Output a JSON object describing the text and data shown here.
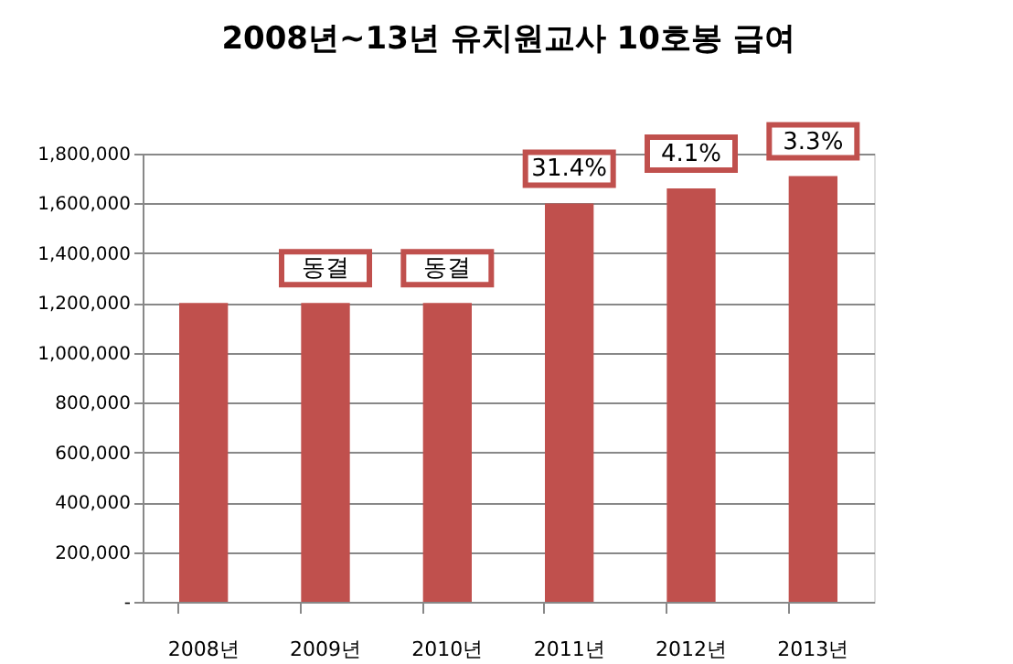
{
  "chart_data": {
    "type": "bar",
    "title": "2008년~13년 유치원교사 10호봉 급여",
    "categories": [
      "2008년",
      "2009년",
      "2010년",
      "2011년",
      "2012년",
      "2013년"
    ],
    "values": [
      1200000,
      1200000,
      1200000,
      1600000,
      1660000,
      1710000
    ],
    "color": "#c0504d",
    "ylim": [
      0,
      1800000
    ],
    "yticks": [
      {
        "value": 0,
        "label": "-"
      },
      {
        "value": 200000,
        "label": "200,000"
      },
      {
        "value": 400000,
        "label": "400,000"
      },
      {
        "value": 600000,
        "label": "600,000"
      },
      {
        "value": 800000,
        "label": "800,000"
      },
      {
        "value": 1000000,
        "label": "1,000,000"
      },
      {
        "value": 1200000,
        "label": "1,200,000"
      },
      {
        "value": 1400000,
        "label": "1,400,000"
      },
      {
        "value": 1600000,
        "label": "1,600,000"
      },
      {
        "value": 1800000,
        "label": "1,800,000"
      }
    ],
    "grid": "y",
    "annotations": [
      {
        "text": "동결",
        "x": "2009년",
        "y": 1200000
      },
      {
        "text": "동결",
        "x": "2010년",
        "y": 1200000
      },
      {
        "text": "31.4%",
        "x": "2011년",
        "y": 1600000
      },
      {
        "text": "4.1%",
        "x": "2012년",
        "y": 1660000
      },
      {
        "text": "3.3%",
        "x": "2013년",
        "y": 1710000
      }
    ]
  }
}
